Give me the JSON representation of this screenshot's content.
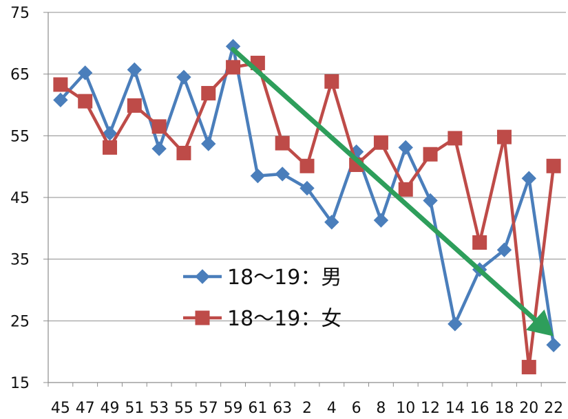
{
  "chart_data": {
    "type": "line",
    "title": "",
    "xlabel": "",
    "ylabel": "",
    "categories": [
      "45",
      "47",
      "49",
      "51",
      "53",
      "55",
      "57",
      "59",
      "61",
      "63",
      "2",
      "4",
      "6",
      "8",
      "10",
      "12",
      "14",
      "16",
      "18",
      "20",
      "22"
    ],
    "ylim": [
      15,
      75
    ],
    "yticks": [
      15,
      25,
      35,
      45,
      55,
      65,
      75
    ],
    "grid": true,
    "legend_position": "center-left",
    "series": [
      {
        "name": "18～19：男",
        "marker": "diamond",
        "color": "#4a7ebb",
        "values": [
          60.8,
          65.2,
          55.4,
          65.7,
          52.9,
          64.5,
          53.7,
          69.5,
          48.5,
          48.8,
          46.5,
          41.0,
          52.4,
          41.3,
          53.1,
          44.5,
          24.5,
          33.3,
          36.5,
          48.1,
          21.1
        ]
      },
      {
        "name": "18～19：女",
        "marker": "square",
        "color": "#be4b48",
        "values": [
          63.3,
          60.6,
          53.1,
          59.9,
          56.5,
          52.2,
          61.9,
          66.1,
          66.8,
          53.8,
          50.1,
          63.8,
          50.3,
          53.9,
          46.3,
          52.0,
          54.6,
          37.7,
          54.8,
          17.5,
          50.1
        ]
      }
    ],
    "annotations": [
      {
        "type": "arrow",
        "color": "#2e9e5b",
        "from": {
          "category": "59",
          "value": 69
        },
        "to": {
          "category": "22",
          "value": 22.5
        }
      }
    ]
  }
}
